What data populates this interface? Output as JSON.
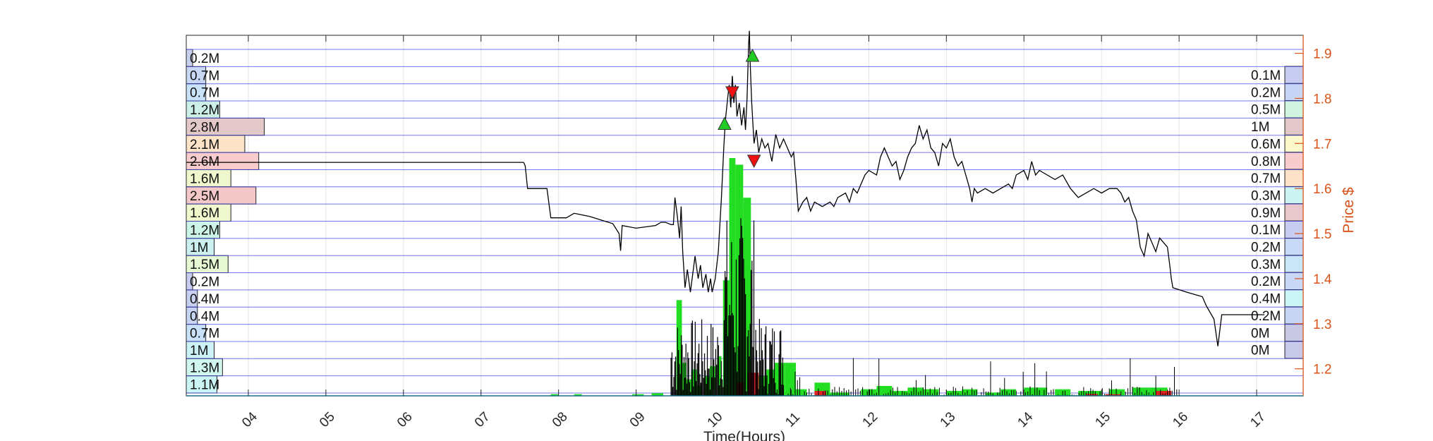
{
  "chart_data": {
    "type": "line",
    "xlabel": "Time(Hours)",
    "ylabel_right": "Price $",
    "xlim": [
      3.2,
      17.6
    ],
    "ylim": [
      1.14,
      1.94
    ],
    "x_ticks": [
      "04",
      "05",
      "06",
      "07",
      "08",
      "09",
      "10",
      "11",
      "12",
      "13",
      "14",
      "15",
      "16",
      "17"
    ],
    "y_ticks": [
      1.2,
      1.3,
      1.4,
      1.5,
      1.6,
      1.7,
      1.8,
      1.9
    ],
    "grid": true,
    "colors": {
      "axis": "#262626",
      "price_axis": "#d95319",
      "price_line": "#000000",
      "band_line": "#4a4ae8",
      "buy_volume": "#22dd22",
      "sell_volume": "#dd2222",
      "buy_marker": "#22cc22",
      "sell_marker": "#ee1111"
    },
    "left_volume_profile": [
      {
        "label": "0.2M",
        "value": 0.2,
        "color": "#c8d0f0"
      },
      {
        "label": "0.7M",
        "value": 0.7,
        "color": "#c8d8f4"
      },
      {
        "label": "0.7M",
        "value": 0.7,
        "color": "#c8e2f8"
      },
      {
        "label": "1.2M",
        "value": 1.2,
        "color": "#ccf0e8"
      },
      {
        "label": "2.8M",
        "value": 2.8,
        "color": "#e2c8c8"
      },
      {
        "label": "2.1M",
        "value": 2.1,
        "color": "#fde4c8"
      },
      {
        "label": "2.6M",
        "value": 2.6,
        "color": "#f8cccc"
      },
      {
        "label": "1.6M",
        "value": 1.6,
        "color": "#eef8cc"
      },
      {
        "label": "2.5M",
        "value": 2.5,
        "color": "#f4c8c8"
      },
      {
        "label": "1.6M",
        "value": 1.6,
        "color": "#eef8cc"
      },
      {
        "label": "1.2M",
        "value": 1.2,
        "color": "#ccf4e8"
      },
      {
        "label": "1M",
        "value": 1.0,
        "color": "#ccf0f0"
      },
      {
        "label": "1.5M",
        "value": 1.5,
        "color": "#e6f8d4"
      },
      {
        "label": "0.2M",
        "value": 0.2,
        "color": "#c8ccf0"
      },
      {
        "label": "0.4M",
        "value": 0.4,
        "color": "#c8d0f2"
      },
      {
        "label": "0.4M",
        "value": 0.4,
        "color": "#c8d4f4"
      },
      {
        "label": "0.7M",
        "value": 0.7,
        "color": "#c8e0f8"
      },
      {
        "label": "1M",
        "value": 1.0,
        "color": "#ccf2f6"
      },
      {
        "label": "1.3M",
        "value": 1.3,
        "color": "#d0f6ee"
      },
      {
        "label": "1.1M",
        "value": 1.1,
        "color": "#ccf6f6"
      }
    ],
    "right_volume_profile": [
      {
        "label": "0.1M",
        "value": 0.1,
        "color": "#c8ccf0"
      },
      {
        "label": "0.2M",
        "value": 0.2,
        "color": "#c8d4f6"
      },
      {
        "label": "0.5M",
        "value": 0.5,
        "color": "#d0f4e0"
      },
      {
        "label": "1M",
        "value": 1.0,
        "color": "#e2c8c8"
      },
      {
        "label": "0.6M",
        "value": 0.6,
        "color": "#fbf8cc"
      },
      {
        "label": "0.8M",
        "value": 0.8,
        "color": "#f8cccc"
      },
      {
        "label": "0.7M",
        "value": 0.7,
        "color": "#fde2c8"
      },
      {
        "label": "0.3M",
        "value": 0.3,
        "color": "#ccf4f2"
      },
      {
        "label": "0.9M",
        "value": 0.9,
        "color": "#e8c8cc"
      },
      {
        "label": "0.1M",
        "value": 0.1,
        "color": "#c8ccf0"
      },
      {
        "label": "0.2M",
        "value": 0.2,
        "color": "#c8daf6"
      },
      {
        "label": "0.3M",
        "value": 0.3,
        "color": "#c8e6f8"
      },
      {
        "label": "0.2M",
        "value": 0.2,
        "color": "#c8d8f6"
      },
      {
        "label": "0.4M",
        "value": 0.4,
        "color": "#ccf6f6"
      },
      {
        "label": "0.2M",
        "value": 0.2,
        "color": "#c8d6f6"
      },
      {
        "label": "0M",
        "value": 0.0,
        "color": "#c8c8e4"
      },
      {
        "label": "0M",
        "value": 0.0,
        "color": "#c8c8e8"
      }
    ],
    "price_series": [
      [
        7.55,
        1.658
      ],
      [
        7.57,
        1.65
      ],
      [
        7.6,
        1.6
      ],
      [
        7.85,
        1.6
      ],
      [
        7.9,
        1.535
      ],
      [
        8.1,
        1.535
      ],
      [
        8.2,
        1.545
      ],
      [
        8.4,
        1.538
      ],
      [
        8.55,
        1.53
      ],
      [
        8.7,
        1.522
      ],
      [
        8.78,
        1.5
      ],
      [
        8.8,
        1.462
      ],
      [
        8.82,
        1.518
      ],
      [
        9.0,
        1.512
      ],
      [
        9.25,
        1.518
      ],
      [
        9.32,
        1.525
      ],
      [
        9.38,
        1.525
      ],
      [
        9.45,
        1.52
      ],
      [
        9.48,
        1.52
      ],
      [
        9.5,
        1.58
      ],
      [
        9.53,
        1.54
      ],
      [
        9.56,
        1.49
      ],
      [
        9.58,
        1.56
      ],
      [
        9.6,
        1.46
      ],
      [
        9.63,
        1.38
      ],
      [
        9.66,
        1.42
      ],
      [
        9.7,
        1.37
      ],
      [
        9.73,
        1.41
      ],
      [
        9.76,
        1.45
      ],
      [
        9.8,
        1.4
      ],
      [
        9.83,
        1.43
      ],
      [
        9.86,
        1.38
      ],
      [
        9.9,
        1.41
      ],
      [
        9.93,
        1.37
      ],
      [
        9.96,
        1.4
      ],
      [
        9.98,
        1.37
      ],
      [
        10.02,
        1.4
      ],
      [
        10.06,
        1.46
      ],
      [
        10.1,
        1.58
      ],
      [
        10.13,
        1.69
      ],
      [
        10.15,
        1.75
      ],
      [
        10.18,
        1.8
      ],
      [
        10.2,
        1.83
      ],
      [
        10.22,
        1.78
      ],
      [
        10.24,
        1.85
      ],
      [
        10.26,
        1.79
      ],
      [
        10.28,
        1.83
      ],
      [
        10.3,
        1.76
      ],
      [
        10.33,
        1.79
      ],
      [
        10.36,
        1.74
      ],
      [
        10.39,
        1.78
      ],
      [
        10.41,
        1.73
      ],
      [
        10.43,
        1.8
      ],
      [
        10.45,
        1.92
      ],
      [
        10.46,
        1.95
      ],
      [
        10.47,
        1.88
      ],
      [
        10.49,
        1.79
      ],
      [
        10.52,
        1.7
      ],
      [
        10.55,
        1.73
      ],
      [
        10.58,
        1.68
      ],
      [
        10.62,
        1.71
      ],
      [
        10.66,
        1.69
      ],
      [
        10.7,
        1.7
      ],
      [
        10.75,
        1.66
      ],
      [
        10.8,
        1.72
      ],
      [
        10.85,
        1.69
      ],
      [
        10.9,
        1.71
      ],
      [
        10.95,
        1.69
      ],
      [
        11.0,
        1.67
      ],
      [
        11.03,
        1.68
      ],
      [
        11.06,
        1.62
      ],
      [
        11.09,
        1.55
      ],
      [
        11.15,
        1.57
      ],
      [
        11.2,
        1.58
      ],
      [
        11.25,
        1.55
      ],
      [
        11.3,
        1.57
      ],
      [
        11.4,
        1.56
      ],
      [
        11.5,
        1.57
      ],
      [
        11.55,
        1.56
      ],
      [
        11.6,
        1.58
      ],
      [
        11.7,
        1.59
      ],
      [
        11.75,
        1.57
      ],
      [
        11.8,
        1.6
      ],
      [
        11.85,
        1.59
      ],
      [
        11.9,
        1.61
      ],
      [
        11.95,
        1.63
      ],
      [
        12.0,
        1.64
      ],
      [
        12.1,
        1.63
      ],
      [
        12.15,
        1.67
      ],
      [
        12.2,
        1.69
      ],
      [
        12.25,
        1.67
      ],
      [
        12.3,
        1.65
      ],
      [
        12.35,
        1.66
      ],
      [
        12.4,
        1.62
      ],
      [
        12.45,
        1.64
      ],
      [
        12.5,
        1.67
      ],
      [
        12.55,
        1.69
      ],
      [
        12.6,
        1.7
      ],
      [
        12.65,
        1.74
      ],
      [
        12.7,
        1.71
      ],
      [
        12.75,
        1.73
      ],
      [
        12.8,
        1.69
      ],
      [
        12.85,
        1.68
      ],
      [
        12.9,
        1.65
      ],
      [
        12.95,
        1.7
      ],
      [
        13.0,
        1.69
      ],
      [
        13.05,
        1.71
      ],
      [
        13.1,
        1.67
      ],
      [
        13.15,
        1.65
      ],
      [
        13.2,
        1.66
      ],
      [
        13.25,
        1.63
      ],
      [
        13.3,
        1.6
      ],
      [
        13.33,
        1.57
      ],
      [
        13.36,
        1.6
      ],
      [
        13.4,
        1.59
      ],
      [
        13.5,
        1.6
      ],
      [
        13.6,
        1.59
      ],
      [
        13.7,
        1.6
      ],
      [
        13.8,
        1.61
      ],
      [
        13.85,
        1.6
      ],
      [
        13.9,
        1.63
      ],
      [
        14.0,
        1.64
      ],
      [
        14.05,
        1.62
      ],
      [
        14.1,
        1.66
      ],
      [
        14.15,
        1.63
      ],
      [
        14.2,
        1.64
      ],
      [
        14.3,
        1.63
      ],
      [
        14.4,
        1.62
      ],
      [
        14.5,
        1.63
      ],
      [
        14.6,
        1.6
      ],
      [
        14.7,
        1.58
      ],
      [
        14.8,
        1.59
      ],
      [
        14.9,
        1.6
      ],
      [
        15.0,
        1.59
      ],
      [
        15.1,
        1.6
      ],
      [
        15.2,
        1.6
      ],
      [
        15.25,
        1.59
      ],
      [
        15.3,
        1.57
      ],
      [
        15.35,
        1.58
      ],
      [
        15.4,
        1.55
      ],
      [
        15.45,
        1.53
      ],
      [
        15.5,
        1.47
      ],
      [
        15.55,
        1.45
      ],
      [
        15.6,
        1.5
      ],
      [
        15.65,
        1.48
      ],
      [
        15.7,
        1.46
      ],
      [
        15.75,
        1.49
      ],
      [
        15.8,
        1.48
      ],
      [
        15.85,
        1.47
      ],
      [
        15.88,
        1.43
      ],
      [
        15.9,
        1.4
      ],
      [
        15.92,
        1.38
      ],
      [
        16.1,
        1.37
      ],
      [
        16.3,
        1.36
      ],
      [
        16.35,
        1.34
      ],
      [
        16.45,
        1.31
      ],
      [
        16.5,
        1.25
      ],
      [
        16.55,
        1.32
      ],
      [
        17.1,
        1.32
      ]
    ],
    "price_segments": [
      {
        "x1": 3.2,
        "x2": 7.55,
        "y": 1.658
      }
    ],
    "buy_markers": [
      [
        10.14,
        1.742
      ],
      [
        10.5,
        1.893
      ]
    ],
    "sell_markers": [
      [
        10.24,
        1.815
      ],
      [
        10.52,
        1.663
      ]
    ],
    "buy_volume_bars": [
      [
        9.52,
        9.59,
        2.9
      ],
      [
        9.6,
        9.65,
        1.0
      ],
      [
        9.65,
        9.72,
        0.5
      ],
      [
        9.72,
        9.78,
        0.8
      ],
      [
        9.78,
        9.85,
        0.3
      ],
      [
        9.88,
        9.95,
        0.6
      ],
      [
        9.95,
        10.02,
        0.9
      ],
      [
        10.05,
        10.1,
        1.2
      ],
      [
        10.12,
        10.2,
        3.5
      ],
      [
        10.2,
        10.28,
        7.2
      ],
      [
        10.28,
        10.38,
        7.0
      ],
      [
        10.38,
        10.48,
        6.0
      ],
      [
        10.48,
        10.58,
        0.6
      ],
      [
        10.58,
        10.68,
        0.6
      ],
      [
        10.68,
        10.78,
        0.8
      ],
      [
        10.78,
        10.92,
        1.0
      ],
      [
        10.92,
        11.06,
        1.0
      ],
      [
        11.06,
        11.2,
        0.2
      ],
      [
        11.3,
        11.5,
        0.4
      ],
      [
        11.5,
        11.75,
        0.1
      ],
      [
        11.9,
        12.1,
        0.2
      ],
      [
        12.1,
        12.3,
        0.3
      ],
      [
        12.3,
        12.5,
        0.15
      ],
      [
        12.5,
        12.7,
        0.25
      ],
      [
        12.7,
        12.9,
        0.2
      ],
      [
        13.0,
        13.2,
        0.15
      ],
      [
        13.2,
        13.4,
        0.2
      ],
      [
        13.5,
        13.7,
        0.1
      ],
      [
        13.7,
        13.9,
        0.2
      ],
      [
        14.0,
        14.3,
        0.25
      ],
      [
        14.4,
        14.6,
        0.2
      ],
      [
        14.7,
        15.0,
        0.15
      ],
      [
        15.1,
        15.3,
        0.2
      ],
      [
        15.4,
        15.6,
        0.25
      ],
      [
        15.6,
        15.85,
        0.25
      ],
      [
        7.9,
        8.0,
        0.05
      ],
      [
        8.2,
        8.3,
        0.05
      ],
      [
        8.95,
        9.1,
        0.05
      ],
      [
        9.2,
        9.35,
        0.08
      ]
    ],
    "sell_volume_bars": [
      [
        10.45,
        10.58,
        0.7
      ],
      [
        10.3,
        10.38,
        0.4
      ],
      [
        11.3,
        11.45,
        0.15
      ],
      [
        14.8,
        14.95,
        0.06
      ],
      [
        15.7,
        15.9,
        0.15
      ],
      [
        15.05,
        15.25,
        0.05
      ]
    ]
  }
}
